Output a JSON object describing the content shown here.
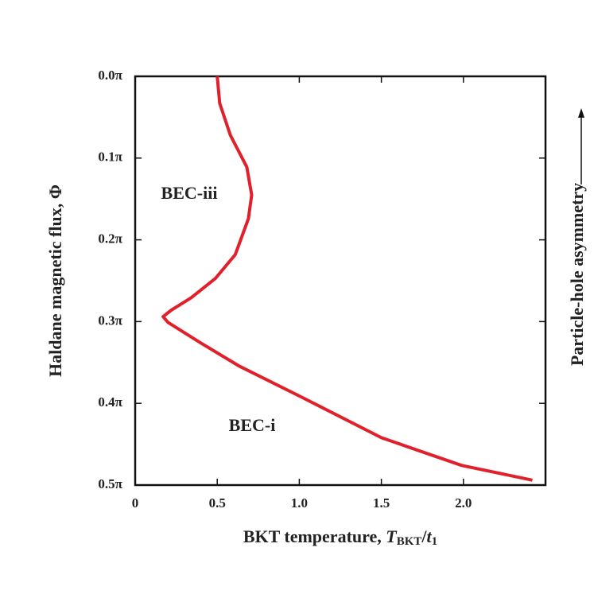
{
  "chart_data": {
    "type": "line",
    "xlabel": [
      "BKT temperature, ",
      "T",
      "BKT",
      "/",
      "t",
      "1"
    ],
    "ylabel": "Haldane magnetic flux, Φ",
    "side_label": "Particle-hole asymmetry",
    "annotations": [
      "BEC-iii",
      "BEC-i"
    ],
    "x": [
      0.5,
      0.515,
      0.58,
      0.68,
      0.71,
      0.69,
      0.61,
      0.49,
      0.34,
      0.22,
      0.17,
      0.2,
      0.39,
      0.63,
      1.02,
      1.5,
      1.99,
      2.42
    ],
    "series": [
      {
        "color": "#e0202a",
        "values": [
          0,
          0.033,
          0.072,
          0.111,
          0.145,
          0.174,
          0.218,
          0.247,
          0.271,
          0.286,
          0.294,
          0.301,
          0.325,
          0.354,
          0.393,
          0.442,
          0.476,
          0.494
        ]
      }
    ],
    "xlim": [
      0,
      2.5
    ],
    "ylim": [
      0.5,
      0
    ],
    "xticks": [
      0,
      0.5,
      {
        "value": 1,
        "label": "1.0"
      },
      {
        "value": 1.5,
        "label": "1.5"
      },
      {
        "value": 2,
        "label": "2.0"
      }
    ],
    "yticks": [
      {
        "value": 0,
        "label": "0.0π"
      },
      {
        "value": 0.1,
        "label": "0.1π"
      },
      {
        "value": 0.2,
        "label": "0.2π"
      },
      {
        "value": 0.3,
        "label": "0.3π"
      },
      {
        "value": 0.4,
        "label": "0.4π"
      },
      {
        "value": 0.5,
        "label": "0.5π"
      }
    ]
  }
}
